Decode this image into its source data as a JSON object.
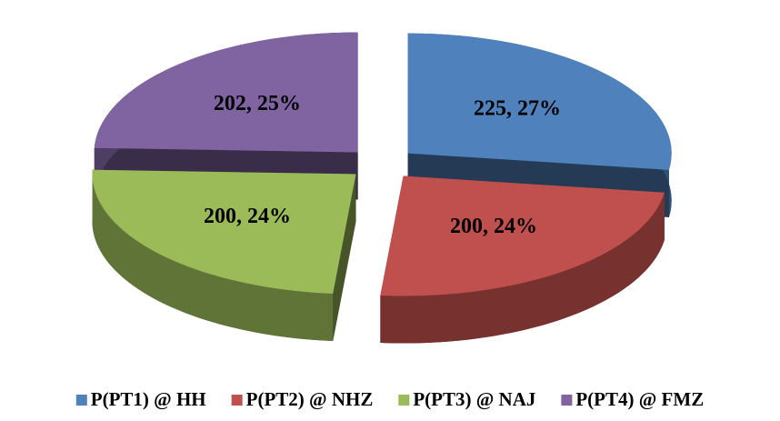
{
  "chart_data": {
    "type": "pie3d",
    "categories": [
      "P(PT1) @ HH",
      "P(PT2) @ NHZ",
      "P(PT3) @ NAJ",
      "P(PT4) @ FMZ"
    ],
    "values": [
      225,
      200,
      200,
      202
    ],
    "value_labels": [
      "225, 27%",
      "200, 24%",
      "200, 24%",
      "202, 25%"
    ],
    "colors": [
      "#4f81bd",
      "#c0504d",
      "#9bbb59",
      "#8064a2"
    ],
    "legend": "bottom"
  }
}
